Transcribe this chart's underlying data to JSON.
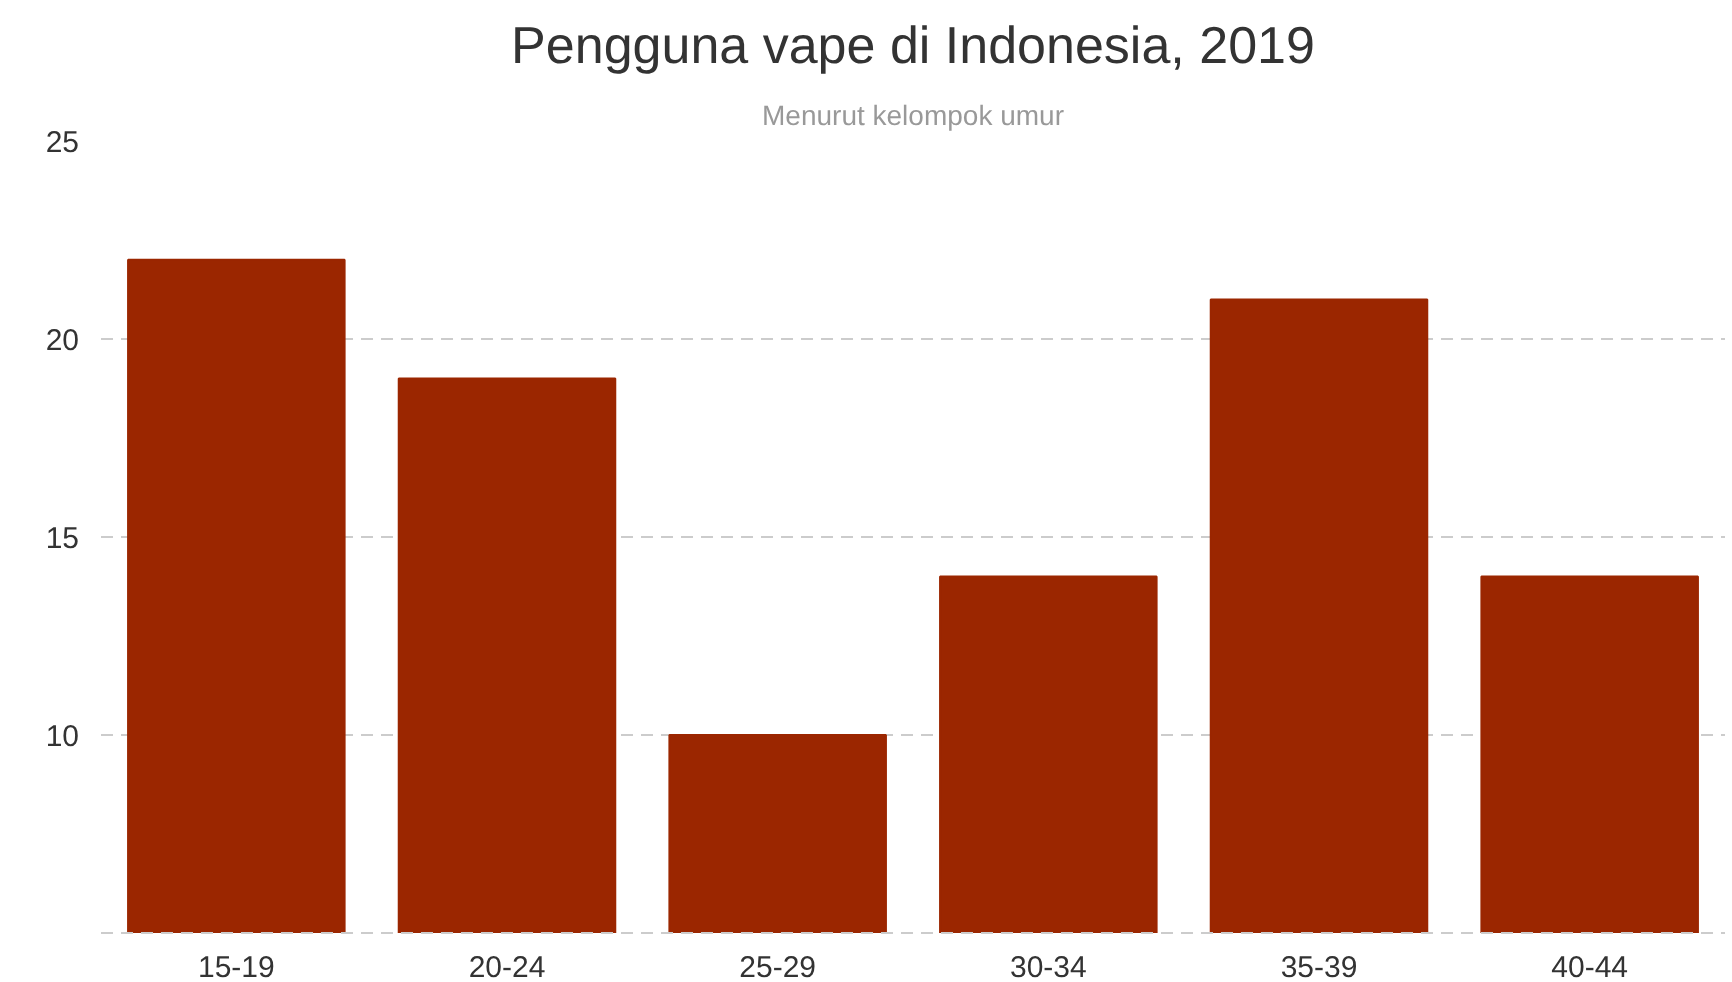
{
  "chart_data": {
    "type": "bar",
    "title": "Pengguna vape di Indonesia, 2019",
    "subtitle": "Menurut kelompok umur",
    "categories": [
      "15-19",
      "20-24",
      "25-29",
      "30-34",
      "35-39",
      "40-44"
    ],
    "values": [
      22,
      19,
      10,
      14,
      21,
      14
    ],
    "color": "#9b2600",
    "ylim": [
      5,
      25
    ],
    "yticks": [
      10,
      15,
      20,
      25
    ],
    "grid": "y"
  }
}
